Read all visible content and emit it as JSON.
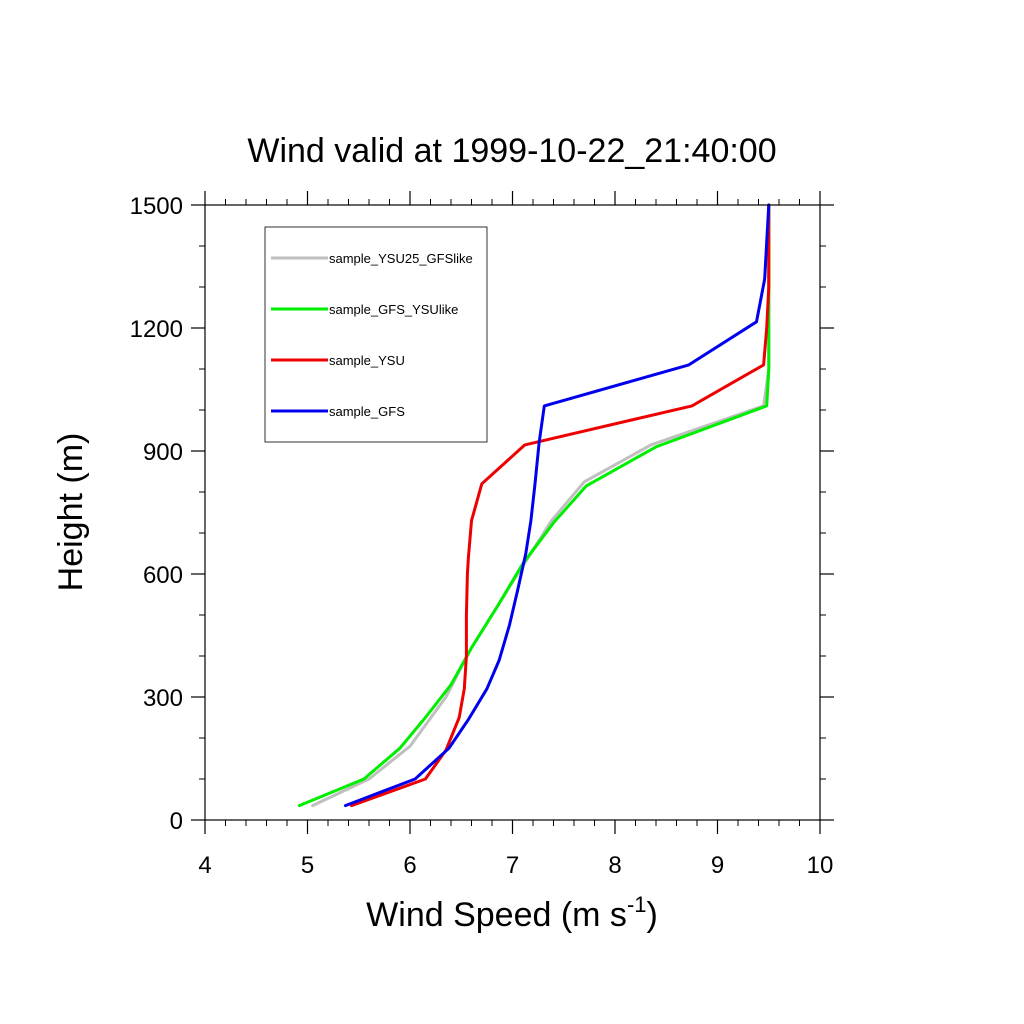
{
  "chart_data": {
    "type": "line",
    "title": "Wind valid at 1999-10-22_21:40:00",
    "xlabel": {
      "main": "Wind Speed (m s",
      "sup": "-1",
      "close": ")"
    },
    "ylabel": "Height (m)",
    "xlim": [
      4,
      10
    ],
    "ylim": [
      0,
      1500
    ],
    "xticks": [
      4,
      5,
      6,
      7,
      8,
      9,
      10
    ],
    "yticks": [
      0,
      300,
      600,
      900,
      1200,
      1500
    ],
    "x_minor_step": 0.2,
    "y_minor_step": 100,
    "grid": false,
    "legend_position": "top-left",
    "series": [
      {
        "name": "sample_YSU25_GFSlike",
        "color": "#bfbfbf",
        "points": [
          [
            5.05,
            35
          ],
          [
            5.6,
            100
          ],
          [
            6.0,
            180
          ],
          [
            6.35,
            300
          ],
          [
            6.6,
            420
          ],
          [
            6.85,
            520
          ],
          [
            7.1,
            620
          ],
          [
            7.38,
            730
          ],
          [
            7.7,
            825
          ],
          [
            8.35,
            915
          ],
          [
            9.45,
            1010
          ],
          [
            9.5,
            1100
          ],
          [
            9.5,
            1200
          ],
          [
            9.5,
            1300
          ],
          [
            9.5,
            1500
          ]
        ]
      },
      {
        "name": "sample_GFS_YSUlike",
        "color": "#00ee00",
        "points": [
          [
            4.92,
            35
          ],
          [
            5.55,
            100
          ],
          [
            5.9,
            175
          ],
          [
            6.15,
            250
          ],
          [
            6.4,
            330
          ],
          [
            6.6,
            420
          ],
          [
            6.85,
            520
          ],
          [
            7.1,
            625
          ],
          [
            7.4,
            725
          ],
          [
            7.72,
            815
          ],
          [
            8.4,
            910
          ],
          [
            9.48,
            1010
          ],
          [
            9.5,
            1100
          ],
          [
            9.5,
            1200
          ],
          [
            9.5,
            1300
          ],
          [
            9.5,
            1500
          ]
        ]
      },
      {
        "name": "sample_YSU",
        "color": "#ee0000",
        "points": [
          [
            5.43,
            35
          ],
          [
            6.15,
            100
          ],
          [
            6.35,
            170
          ],
          [
            6.48,
            250
          ],
          [
            6.53,
            320
          ],
          [
            6.55,
            400
          ],
          [
            6.55,
            500
          ],
          [
            6.56,
            600
          ],
          [
            6.57,
            640
          ],
          [
            6.6,
            730
          ],
          [
            6.7,
            820
          ],
          [
            7.12,
            915
          ],
          [
            8.75,
            1010
          ],
          [
            9.45,
            1110
          ],
          [
            9.48,
            1200
          ],
          [
            9.5,
            1300
          ],
          [
            9.5,
            1500
          ]
        ]
      },
      {
        "name": "sample_GFS",
        "color": "#0000ee",
        "points": [
          [
            5.37,
            35
          ],
          [
            6.05,
            100
          ],
          [
            6.38,
            175
          ],
          [
            6.57,
            245
          ],
          [
            6.75,
            320
          ],
          [
            6.87,
            390
          ],
          [
            6.97,
            475
          ],
          [
            7.05,
            560
          ],
          [
            7.13,
            650
          ],
          [
            7.18,
            730
          ],
          [
            7.22,
            820
          ],
          [
            7.26,
            920
          ],
          [
            7.31,
            1010
          ],
          [
            8.72,
            1110
          ],
          [
            9.38,
            1215
          ],
          [
            9.46,
            1320
          ],
          [
            9.48,
            1410
          ],
          [
            9.5,
            1500
          ]
        ]
      }
    ]
  }
}
